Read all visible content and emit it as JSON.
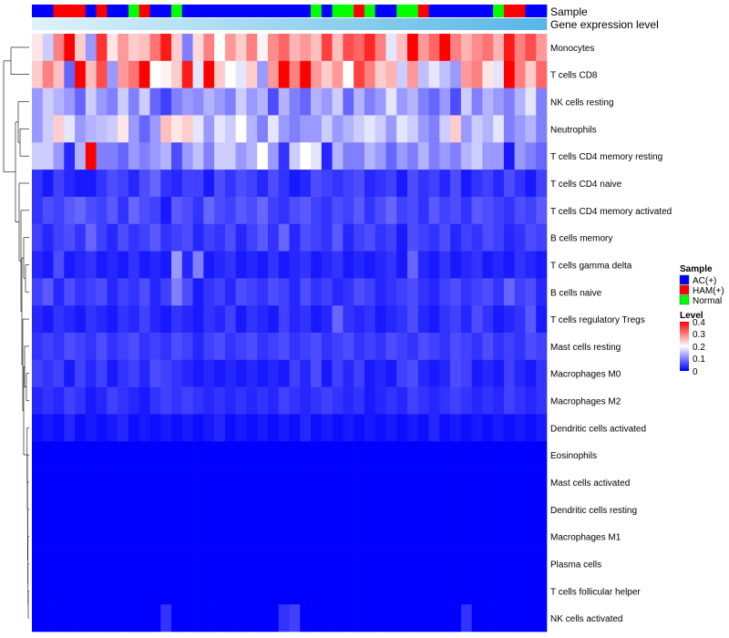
{
  "chart_data": {
    "type": "heatmap",
    "title": "",
    "annotation_tracks": [
      "Sample",
      "Gene expression level"
    ],
    "sample_groups": [
      "AC",
      "AC",
      "HAM",
      "HAM",
      "HAM",
      "AC",
      "HAM",
      "AC",
      "AC",
      "Normal",
      "HAM",
      "AC",
      "AC",
      "Normal",
      "AC",
      "AC",
      "AC",
      "AC",
      "AC",
      "AC",
      "AC",
      "AC",
      "AC",
      "AC",
      "AC",
      "AC",
      "Normal",
      "AC",
      "Normal",
      "Normal",
      "HAM",
      "Normal",
      "AC",
      "AC",
      "Normal",
      "Normal",
      "HAM",
      "AC",
      "AC",
      "AC",
      "AC",
      "AC",
      "AC",
      "Normal",
      "HAM",
      "HAM",
      "AC",
      "AC"
    ],
    "expression_level": [
      0.02,
      0.04,
      0.06,
      0.08,
      0.1,
      0.12,
      0.14,
      0.16,
      0.18,
      0.2,
      0.22,
      0.24,
      0.26,
      0.28,
      0.3,
      0.32,
      0.34,
      0.36,
      0.38,
      0.4,
      0.42,
      0.44,
      0.46,
      0.48,
      0.5,
      0.52,
      0.54,
      0.56,
      0.58,
      0.6,
      0.62,
      0.64,
      0.66,
      0.68,
      0.7,
      0.72,
      0.74,
      0.76,
      0.78,
      0.8,
      0.82,
      0.84,
      0.86,
      0.88,
      0.9,
      0.92,
      0.94,
      0.96
    ],
    "rows": [
      {
        "label": "Monocytes",
        "values": [
          0.22,
          0.16,
          0.3,
          0.4,
          0.24,
          0.12,
          0.36,
          0.22,
          0.28,
          0.24,
          0.25,
          0.31,
          0.38,
          0.24,
          0.1,
          0.23,
          0.3,
          0.2,
          0.28,
          0.24,
          0.3,
          0.21,
          0.29,
          0.32,
          0.26,
          0.28,
          0.25,
          0.35,
          0.25,
          0.34,
          0.32,
          0.37,
          0.3,
          0.18,
          0.25,
          0.4,
          0.28,
          0.32,
          0.4,
          0.3,
          0.26,
          0.29,
          0.31,
          0.26,
          0.38,
          0.3,
          0.34,
          0.28
        ]
      },
      {
        "label": "T cells CD8",
        "values": [
          0.24,
          0.3,
          0.25,
          0.08,
          0.4,
          0.25,
          0.34,
          0.12,
          0.28,
          0.31,
          0.4,
          0.2,
          0.21,
          0.24,
          0.38,
          0.18,
          0.4,
          0.24,
          0.2,
          0.18,
          0.24,
          0.12,
          0.28,
          0.4,
          0.3,
          0.4,
          0.28,
          0.24,
          0.28,
          0.2,
          0.35,
          0.3,
          0.24,
          0.26,
          0.16,
          0.28,
          0.15,
          0.18,
          0.15,
          0.12,
          0.28,
          0.3,
          0.22,
          0.18,
          0.4,
          0.3,
          0.24,
          0.32
        ]
      },
      {
        "label": "NK cells resting",
        "values": [
          0.12,
          0.16,
          0.14,
          0.12,
          0.08,
          0.16,
          0.12,
          0.1,
          0.16,
          0.1,
          0.16,
          0.08,
          0.05,
          0.1,
          0.12,
          0.11,
          0.14,
          0.12,
          0.1,
          0.16,
          0.12,
          0.14,
          0.06,
          0.14,
          0.1,
          0.08,
          0.14,
          0.12,
          0.16,
          0.08,
          0.14,
          0.1,
          0.12,
          0.18,
          0.12,
          0.14,
          0.1,
          0.08,
          0.12,
          0.06,
          0.16,
          0.1,
          0.14,
          0.12,
          0.1,
          0.14,
          0.18,
          0.1
        ]
      },
      {
        "label": "Neutrophils",
        "values": [
          0.12,
          0.16,
          0.24,
          0.18,
          0.12,
          0.14,
          0.15,
          0.16,
          0.22,
          0.12,
          0.08,
          0.12,
          0.25,
          0.22,
          0.24,
          0.18,
          0.12,
          0.18,
          0.16,
          0.2,
          0.14,
          0.1,
          0.18,
          0.12,
          0.1,
          0.12,
          0.12,
          0.16,
          0.12,
          0.14,
          0.16,
          0.18,
          0.16,
          0.12,
          0.18,
          0.16,
          0.12,
          0.1,
          0.16,
          0.24,
          0.12,
          0.16,
          0.14,
          0.18,
          0.1,
          0.12,
          0.14,
          0.1
        ]
      },
      {
        "label": "T cells CD4 memory resting",
        "values": [
          0.16,
          0.16,
          0.12,
          0.03,
          0.14,
          0.4,
          0.1,
          0.1,
          0.08,
          0.12,
          0.1,
          0.12,
          0.14,
          0.06,
          0.12,
          0.15,
          0.1,
          0.16,
          0.16,
          0.12,
          0.14,
          0.2,
          0.12,
          0.04,
          0.16,
          0.2,
          0.18,
          0.03,
          0.14,
          0.1,
          0.1,
          0.14,
          0.12,
          0.08,
          0.12,
          0.1,
          0.14,
          0.1,
          0.12,
          0.1,
          0.14,
          0.16,
          0.12,
          0.12,
          0.02,
          0.12,
          0.1,
          0.08
        ]
      },
      {
        "label": "T cells CD4 naive",
        "values": [
          0.04,
          0.02,
          0.05,
          0.03,
          0.02,
          0.02,
          0.04,
          0.06,
          0.05,
          0.03,
          0.06,
          0.08,
          0.04,
          0.03,
          0.05,
          0.05,
          0.02,
          0.06,
          0.04,
          0.06,
          0.05,
          0.03,
          0.06,
          0.04,
          0.02,
          0.03,
          0.06,
          0.05,
          0.04,
          0.05,
          0.06,
          0.03,
          0.04,
          0.05,
          0.02,
          0.06,
          0.04,
          0.05,
          0.03,
          0.06,
          0.02,
          0.04,
          0.05,
          0.03,
          0.06,
          0.04,
          0.02,
          0.05
        ]
      },
      {
        "label": "T cells CD4 memory activated",
        "values": [
          0.04,
          0.06,
          0.05,
          0.07,
          0.08,
          0.06,
          0.05,
          0.07,
          0.04,
          0.08,
          0.06,
          0.05,
          0.02,
          0.07,
          0.06,
          0.04,
          0.08,
          0.06,
          0.05,
          0.07,
          0.06,
          0.08,
          0.05,
          0.04,
          0.06,
          0.07,
          0.05,
          0.04,
          0.06,
          0.05,
          0.07,
          0.04,
          0.06,
          0.08,
          0.05,
          0.06,
          0.04,
          0.07,
          0.05,
          0.06,
          0.04,
          0.07,
          0.06,
          0.05,
          0.04,
          0.06,
          0.05,
          0.07
        ]
      },
      {
        "label": "B cells memory",
        "values": [
          0.05,
          0.03,
          0.05,
          0.06,
          0.04,
          0.08,
          0.05,
          0.03,
          0.06,
          0.04,
          0.05,
          0.07,
          0.04,
          0.05,
          0.06,
          0.03,
          0.05,
          0.04,
          0.06,
          0.03,
          0.05,
          0.07,
          0.04,
          0.08,
          0.03,
          0.06,
          0.05,
          0.04,
          0.07,
          0.03,
          0.05,
          0.06,
          0.04,
          0.05,
          0.02,
          0.06,
          0.05,
          0.04,
          0.06,
          0.03,
          0.05,
          0.04,
          0.06,
          0.05,
          0.03,
          0.04,
          0.06,
          0.05
        ]
      },
      {
        "label": "T cells gamma delta",
        "values": [
          0.03,
          0.02,
          0.06,
          0.02,
          0.03,
          0.04,
          0.02,
          0.03,
          0.02,
          0.04,
          0.02,
          0.03,
          0.02,
          0.12,
          0.03,
          0.1,
          0.02,
          0.03,
          0.04,
          0.02,
          0.03,
          0.02,
          0.04,
          0.02,
          0.03,
          0.04,
          0.02,
          0.03,
          0.04,
          0.02,
          0.03,
          0.02,
          0.03,
          0.04,
          0.02,
          0.08,
          0.03,
          0.02,
          0.04,
          0.02,
          0.03,
          0.04,
          0.02,
          0.03,
          0.02,
          0.04,
          0.03,
          0.02
        ]
      },
      {
        "label": "B cells naive",
        "values": [
          0.05,
          0.07,
          0.03,
          0.06,
          0.04,
          0.05,
          0.06,
          0.03,
          0.05,
          0.04,
          0.06,
          0.03,
          0.05,
          0.1,
          0.06,
          0.02,
          0.04,
          0.05,
          0.03,
          0.06,
          0.05,
          0.04,
          0.06,
          0.05,
          0.03,
          0.06,
          0.04,
          0.05,
          0.03,
          0.04,
          0.06,
          0.05,
          0.03,
          0.04,
          0.05,
          0.06,
          0.04,
          0.03,
          0.05,
          0.06,
          0.04,
          0.05,
          0.06,
          0.04,
          0.08,
          0.05,
          0.06,
          0.03
        ]
      },
      {
        "label": "T cells regulatory  Tregs",
        "values": [
          0.03,
          0.02,
          0.04,
          0.03,
          0.02,
          0.04,
          0.03,
          0.02,
          0.04,
          0.03,
          0.05,
          0.03,
          0.02,
          0.04,
          0.03,
          0.02,
          0.04,
          0.03,
          0.05,
          0.02,
          0.04,
          0.03,
          0.02,
          0.05,
          0.03,
          0.04,
          0.02,
          0.03,
          0.08,
          0.04,
          0.03,
          0.04,
          0.02,
          0.03,
          0.04,
          0.06,
          0.03,
          0.02,
          0.04,
          0.05,
          0.03,
          0.06,
          0.04,
          0.02,
          0.03,
          0.04,
          0.07,
          0.02
        ]
      },
      {
        "label": "Mast cells resting",
        "values": [
          0.04,
          0.05,
          0.04,
          0.06,
          0.05,
          0.04,
          0.06,
          0.04,
          0.05,
          0.06,
          0.04,
          0.05,
          0.04,
          0.06,
          0.05,
          0.03,
          0.05,
          0.06,
          0.04,
          0.05,
          0.06,
          0.04,
          0.05,
          0.06,
          0.04,
          0.05,
          0.06,
          0.04,
          0.05,
          0.06,
          0.04,
          0.05,
          0.04,
          0.06,
          0.05,
          0.04,
          0.06,
          0.05,
          0.04,
          0.06,
          0.05,
          0.04,
          0.06,
          0.04,
          0.05,
          0.04,
          0.06,
          0.05
        ]
      },
      {
        "label": "Macrophages M0",
        "values": [
          0.05,
          0.04,
          0.05,
          0.02,
          0.05,
          0.03,
          0.05,
          0.02,
          0.04,
          0.05,
          0.03,
          0.06,
          0.05,
          0.04,
          0.03,
          0.02,
          0.03,
          0.02,
          0.03,
          0.02,
          0.03,
          0.02,
          0.03,
          0.02,
          0.05,
          0.03,
          0.06,
          0.02,
          0.05,
          0.03,
          0.05,
          0.02,
          0.03,
          0.02,
          0.05,
          0.06,
          0.03,
          0.02,
          0.03,
          0.06,
          0.05,
          0.02,
          0.03,
          0.02,
          0.05,
          0.03,
          0.02,
          0.04
        ]
      },
      {
        "label": "Macrophages M2",
        "values": [
          0.03,
          0.04,
          0.03,
          0.05,
          0.04,
          0.02,
          0.03,
          0.05,
          0.04,
          0.03,
          0.02,
          0.04,
          0.05,
          0.04,
          0.05,
          0.04,
          0.03,
          0.04,
          0.03,
          0.04,
          0.03,
          0.04,
          0.03,
          0.05,
          0.04,
          0.03,
          0.04,
          0.05,
          0.04,
          0.03,
          0.04,
          0.02,
          0.03,
          0.04,
          0.03,
          0.05,
          0.04,
          0.03,
          0.04,
          0.05,
          0.04,
          0.03,
          0.04,
          0.03,
          0.05,
          0.04,
          0.03,
          0.04
        ]
      },
      {
        "label": "Dendritic cells activated",
        "values": [
          0.01,
          0.02,
          0.01,
          0.03,
          0.01,
          0.02,
          0.01,
          0.02,
          0.03,
          0.01,
          0.02,
          0.01,
          0.02,
          0.01,
          0.02,
          0.01,
          0.02,
          0.03,
          0.01,
          0.02,
          0.01,
          0.02,
          0.01,
          0.02,
          0.01,
          0.03,
          0.01,
          0.02,
          0.01,
          0.02,
          0.01,
          0.02,
          0.01,
          0.02,
          0.01,
          0.02,
          0.01,
          0.03,
          0.01,
          0.02,
          0.01,
          0.02,
          0.01,
          0.02,
          0.01,
          0.02,
          0.01,
          0.02
        ]
      },
      {
        "label": "Eosinophils",
        "values": [
          0,
          0,
          0,
          0,
          0,
          0,
          0,
          0,
          0,
          0,
          0,
          0,
          0,
          0,
          0,
          0,
          0,
          0,
          0,
          0,
          0,
          0,
          0,
          0,
          0,
          0,
          0,
          0,
          0,
          0,
          0,
          0,
          0,
          0,
          0,
          0,
          0,
          0,
          0,
          0,
          0,
          0,
          0,
          0,
          0,
          0,
          0,
          0
        ]
      },
      {
        "label": "Mast cells activated",
        "values": [
          0,
          0,
          0,
          0,
          0,
          0,
          0,
          0,
          0,
          0,
          0,
          0,
          0,
          0,
          0,
          0,
          0,
          0,
          0,
          0,
          0,
          0,
          0,
          0,
          0,
          0,
          0,
          0,
          0,
          0,
          0,
          0,
          0,
          0,
          0,
          0,
          0,
          0,
          0,
          0,
          0,
          0,
          0,
          0,
          0,
          0,
          0,
          0
        ]
      },
      {
        "label": "Dendritic cells resting",
        "values": [
          0,
          0,
          0,
          0,
          0,
          0,
          0,
          0,
          0,
          0,
          0,
          0,
          0,
          0,
          0,
          0,
          0,
          0,
          0,
          0,
          0,
          0,
          0,
          0,
          0,
          0,
          0,
          0,
          0,
          0,
          0,
          0,
          0,
          0,
          0,
          0,
          0,
          0,
          0,
          0,
          0,
          0,
          0,
          0,
          0,
          0,
          0,
          0
        ]
      },
      {
        "label": "Macrophages M1",
        "values": [
          0,
          0,
          0,
          0,
          0,
          0,
          0,
          0,
          0,
          0,
          0,
          0,
          0,
          0,
          0,
          0,
          0,
          0,
          0,
          0,
          0,
          0,
          0,
          0,
          0,
          0,
          0,
          0,
          0,
          0,
          0,
          0,
          0,
          0,
          0,
          0,
          0,
          0,
          0,
          0,
          0,
          0,
          0,
          0,
          0,
          0,
          0,
          0
        ]
      },
      {
        "label": "Plasma cells",
        "values": [
          0,
          0,
          0,
          0,
          0,
          0,
          0,
          0,
          0,
          0,
          0,
          0,
          0,
          0,
          0,
          0,
          0,
          0,
          0,
          0,
          0,
          0,
          0,
          0,
          0,
          0,
          0,
          0,
          0,
          0,
          0,
          0,
          0,
          0,
          0,
          0,
          0,
          0,
          0,
          0,
          0,
          0,
          0,
          0,
          0,
          0,
          0,
          0
        ]
      },
      {
        "label": "T cells follicular helper",
        "values": [
          0,
          0,
          0,
          0,
          0,
          0,
          0,
          0,
          0,
          0,
          0,
          0,
          0,
          0,
          0,
          0,
          0,
          0,
          0,
          0,
          0,
          0,
          0,
          0,
          0,
          0,
          0,
          0,
          0,
          0,
          0,
          0,
          0,
          0,
          0,
          0,
          0,
          0,
          0,
          0,
          0,
          0,
          0,
          0,
          0,
          0,
          0,
          0
        ]
      },
      {
        "label": "NK cells activated",
        "values": [
          0,
          0,
          0,
          0,
          0,
          0,
          0,
          0,
          0,
          0,
          0,
          0,
          0.04,
          0,
          0,
          0,
          0,
          0,
          0,
          0,
          0,
          0,
          0,
          0.04,
          0.05,
          0,
          0,
          0,
          0,
          0,
          0,
          0,
          0,
          0,
          0,
          0,
          0,
          0,
          0,
          0,
          0.04,
          0,
          0,
          0,
          0,
          0,
          0,
          0
        ]
      }
    ],
    "legends": {
      "sample": {
        "title": "Sample",
        "items": [
          {
            "label": "AC(+)",
            "color": "#0000ff"
          },
          {
            "label": "HAM(+)",
            "color": "#ff0000"
          },
          {
            "label": "Normal",
            "color": "#00ff00"
          }
        ]
      },
      "level": {
        "title": "Level",
        "ticks": [
          "0.4",
          "0.3",
          "0.2",
          "0.1",
          "0"
        ],
        "range": [
          0,
          0.4
        ]
      }
    },
    "colors": {
      "low": "#0000ff",
      "mid": "#ffffff",
      "high": "#ff0000",
      "expr_low": "#e0f3fb",
      "expr_high": "#52b5e6"
    }
  }
}
